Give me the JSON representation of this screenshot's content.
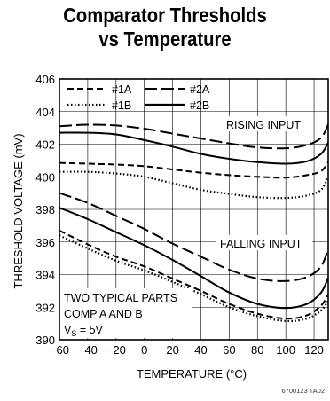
{
  "chart_data": {
    "type": "line",
    "title": "Comparator Thresholds",
    "subtitle": "vs Temperature",
    "xlabel": "TEMPERATURE (°C)",
    "ylabel": "THRESHOLD VOLTAGE (mV)",
    "xlim": [
      -60,
      130
    ],
    "ylim": [
      390,
      406
    ],
    "xticks": [
      -60,
      -40,
      -20,
      0,
      20,
      40,
      60,
      80,
      100,
      120
    ],
    "xtick_labels": [
      "−60",
      "−40",
      "−20",
      "0",
      "20",
      "40",
      "60",
      "80",
      "100",
      "120"
    ],
    "yticks": [
      390,
      392,
      394,
      396,
      398,
      400,
      402,
      404,
      406
    ],
    "ytick_labels": [
      "390",
      "392",
      "394",
      "396",
      "398",
      "400",
      "402",
      "404",
      "406"
    ],
    "grid": true,
    "legend_position": "top-left",
    "annotations": {
      "rising": "RISING INPUT",
      "falling": "FALLING INPUT",
      "note_line1": "TWO TYPICAL PARTS",
      "note_line2": "COMP A AND B",
      "note_line3_main": "V",
      "note_line3_sub": "S",
      "note_line3_rest": " = 5V"
    },
    "figure_id": "6700123 TA02",
    "series": [
      {
        "name": "#1A",
        "style": "dashed",
        "group": "rising",
        "x": [
          -60,
          -40,
          -20,
          0,
          20,
          40,
          60,
          80,
          100,
          115,
          125,
          130
        ],
        "y": [
          400.85,
          400.8,
          400.75,
          400.65,
          400.45,
          400.25,
          400.1,
          400.0,
          399.95,
          400.1,
          400.35,
          400.9
        ]
      },
      {
        "name": "#1B",
        "style": "dotted",
        "group": "rising",
        "x": [
          -60,
          -40,
          -20,
          0,
          20,
          40,
          60,
          80,
          100,
          115,
          125,
          130
        ],
        "y": [
          400.3,
          400.3,
          400.2,
          400.0,
          399.6,
          399.2,
          398.95,
          398.75,
          398.7,
          398.85,
          399.2,
          400.0
        ]
      },
      {
        "name": "#2A",
        "style": "longdash",
        "group": "rising",
        "x": [
          -60,
          -40,
          -20,
          0,
          20,
          40,
          60,
          80,
          100,
          115,
          125,
          130
        ],
        "y": [
          403.1,
          403.2,
          403.15,
          402.95,
          402.65,
          402.35,
          402.05,
          401.8,
          401.75,
          401.95,
          402.4,
          403.2
        ]
      },
      {
        "name": "#2B",
        "style": "solid",
        "group": "rising",
        "x": [
          -60,
          -40,
          -20,
          0,
          20,
          40,
          60,
          80,
          100,
          115,
          125,
          130
        ],
        "y": [
          402.7,
          402.7,
          402.6,
          402.25,
          401.85,
          401.4,
          401.1,
          400.9,
          400.8,
          400.95,
          401.4,
          402.1
        ]
      },
      {
        "name": "#2A",
        "style": "longdash",
        "group": "falling",
        "x": [
          -60,
          -40,
          -20,
          0,
          20,
          40,
          60,
          80,
          100,
          115,
          125,
          130
        ],
        "y": [
          399.0,
          398.4,
          397.6,
          396.8,
          395.9,
          395.1,
          394.3,
          393.75,
          393.6,
          393.85,
          394.5,
          395.6
        ]
      },
      {
        "name": "#2B",
        "style": "solid",
        "group": "falling",
        "x": [
          -60,
          -40,
          -20,
          0,
          20,
          40,
          60,
          80,
          100,
          115,
          125,
          130
        ],
        "y": [
          398.1,
          397.4,
          396.6,
          395.8,
          394.9,
          393.9,
          392.9,
          392.2,
          391.95,
          392.2,
          392.9,
          393.8
        ]
      },
      {
        "name": "#1A",
        "style": "dashed",
        "group": "falling",
        "x": [
          -60,
          -40,
          -20,
          0,
          20,
          40,
          60,
          80,
          100,
          115,
          125,
          130
        ],
        "y": [
          396.7,
          395.85,
          395.1,
          394.5,
          393.75,
          393.0,
          392.2,
          391.6,
          391.3,
          391.5,
          392.1,
          392.8
        ]
      },
      {
        "name": "#1B",
        "style": "dotted",
        "group": "falling",
        "x": [
          -60,
          -40,
          -20,
          0,
          20,
          40,
          60,
          80,
          100,
          115,
          125,
          130
        ],
        "y": [
          396.4,
          395.6,
          394.85,
          394.25,
          393.55,
          392.8,
          392.0,
          391.45,
          391.15,
          391.3,
          391.8,
          392.4
        ]
      }
    ]
  }
}
